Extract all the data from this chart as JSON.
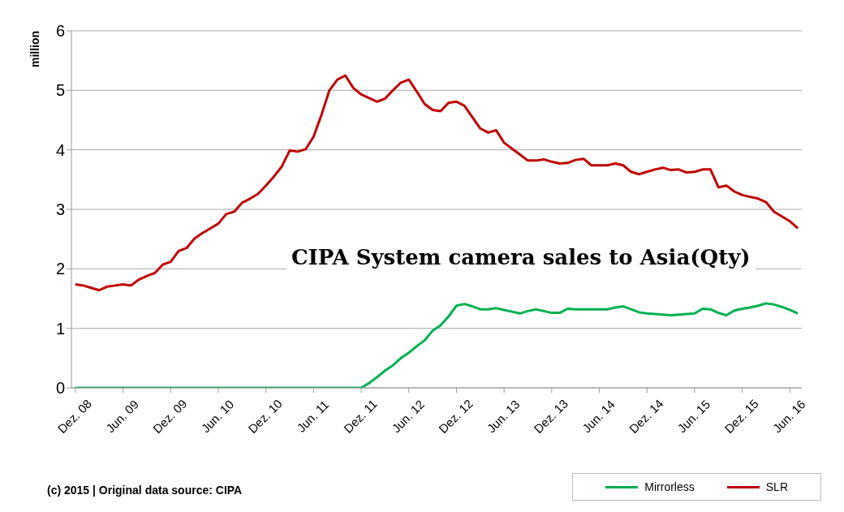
{
  "chart_data": {
    "type": "line",
    "title": "CIPA System camera sales to Asia(Qty)",
    "ylabel": "million",
    "annotations": [
      "(c) 2015 | Original data source: CIPA"
    ],
    "categories": [
      "Dez. 08",
      null,
      null,
      null,
      null,
      null,
      "Jun. 09",
      null,
      null,
      null,
      null,
      null,
      "Dez. 09",
      null,
      null,
      null,
      null,
      null,
      "Jun. 10",
      null,
      null,
      null,
      null,
      null,
      "Dez. 10",
      null,
      null,
      null,
      null,
      null,
      "Jun. 11",
      null,
      null,
      null,
      null,
      null,
      "Dez. 11",
      null,
      null,
      null,
      null,
      null,
      "Jun. 12",
      null,
      null,
      null,
      null,
      null,
      "Dez. 12",
      null,
      null,
      null,
      null,
      null,
      "Jun. 13",
      null,
      null,
      null,
      null,
      null,
      "Dez. 13",
      null,
      null,
      null,
      null,
      null,
      "Jun. 14",
      null,
      null,
      null,
      null,
      null,
      "Dez. 14",
      null,
      null,
      null,
      null,
      null,
      "Jun. 15",
      null,
      null,
      null,
      null,
      null,
      "Dez. 15",
      null,
      null,
      null,
      null,
      null,
      "Jun. 16",
      null
    ],
    "series": [
      {
        "name": "Mirrorless",
        "color": "#00b050",
        "values": [
          0,
          0,
          0,
          0,
          0,
          0,
          0,
          0,
          0,
          0,
          0,
          0,
          0,
          0,
          0,
          0,
          0,
          0,
          0,
          0,
          0,
          0,
          0,
          0,
          0,
          0,
          0,
          0,
          0,
          0,
          0,
          0,
          0,
          0,
          0,
          0,
          0,
          0.08,
          0.18,
          0.29,
          0.38,
          0.5,
          0.59,
          0.7,
          0.8,
          0.96,
          1.05,
          1.2,
          1.38,
          1.41,
          1.37,
          1.32,
          1.32,
          1.34,
          1.31,
          1.28,
          1.25,
          1.29,
          1.32,
          1.29,
          1.26,
          1.26,
          1.33,
          1.32,
          1.32,
          1.32,
          1.32,
          1.32,
          1.35,
          1.37,
          1.32,
          1.27,
          1.25,
          1.24,
          1.23,
          1.22,
          1.23,
          1.24,
          1.25,
          1.33,
          1.32,
          1.26,
          1.22,
          1.3,
          1.33,
          1.35,
          1.38,
          1.42,
          1.4,
          1.36,
          1.31,
          1.25
        ]
      },
      {
        "name": "SLR",
        "color": "#c00000",
        "values": [
          1.74,
          1.72,
          1.68,
          1.64,
          1.7,
          1.72,
          1.74,
          1.72,
          1.82,
          1.88,
          1.93,
          2.07,
          2.12,
          2.3,
          2.35,
          2.51,
          2.6,
          2.68,
          2.76,
          2.92,
          2.96,
          3.11,
          3.18,
          3.26,
          3.4,
          3.55,
          3.72,
          3.99,
          3.97,
          4.01,
          4.22,
          4.59,
          5.0,
          5.18,
          5.25,
          5.04,
          4.93,
          4.87,
          4.81,
          4.86,
          5.0,
          5.13,
          5.18,
          4.98,
          4.77,
          4.67,
          4.65,
          4.79,
          4.81,
          4.74,
          4.55,
          4.36,
          4.29,
          4.33,
          4.12,
          4.02,
          3.92,
          3.82,
          3.82,
          3.84,
          3.8,
          3.77,
          3.78,
          3.83,
          3.85,
          3.74,
          3.74,
          3.74,
          3.77,
          3.74,
          3.63,
          3.59,
          3.63,
          3.67,
          3.7,
          3.66,
          3.67,
          3.62,
          3.63,
          3.67,
          3.67,
          3.37,
          3.4,
          3.3,
          3.24,
          3.21,
          3.18,
          3.12,
          2.96,
          2.88,
          2.8,
          2.68
        ]
      }
    ],
    "ylim": [
      0,
      6
    ],
    "yticks": [
      0,
      1,
      2,
      3,
      4,
      5,
      6
    ],
    "grid": "y",
    "legend": "bottom right",
    "marker": "none",
    "line_style": "solid"
  }
}
